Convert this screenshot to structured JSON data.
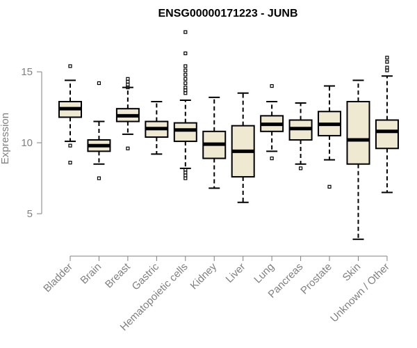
{
  "chart_data": {
    "type": "box",
    "title": "ENSG00000171223 - JUNB",
    "xlabel": "",
    "ylabel": "Expression",
    "ylim": [
      2.6,
      18.0
    ],
    "yticks": [
      5,
      10,
      15
    ],
    "box_fill": "#efe9d2",
    "line_color": "#000000",
    "axis_color": "#808080",
    "categories": [
      "Bladder",
      "Brain",
      "Breast",
      "Gastric",
      "Hematopoietic cells",
      "Kidney",
      "Liver",
      "Lung",
      "Pancreas",
      "Prostate",
      "Skin",
      "Unknown / Other"
    ],
    "boxes": [
      {
        "whisker_low": 10.1,
        "q1": 11.8,
        "median": 12.4,
        "q3": 12.9,
        "whisker_high": 14.4,
        "outliers": [
          15.4,
          9.8,
          8.6
        ]
      },
      {
        "whisker_low": 8.5,
        "q1": 9.4,
        "median": 9.8,
        "q3": 10.2,
        "whisker_high": 11.5,
        "outliers": [
          14.2,
          7.5
        ]
      },
      {
        "whisker_low": 10.6,
        "q1": 11.5,
        "median": 11.9,
        "q3": 12.4,
        "whisker_high": 13.9,
        "outliers": [
          14.5,
          14.3,
          14.1,
          13.9,
          9.6
        ]
      },
      {
        "whisker_low": 9.2,
        "q1": 10.4,
        "median": 11.0,
        "q3": 11.5,
        "whisker_high": 12.9,
        "outliers": []
      },
      {
        "whisker_low": 8.2,
        "q1": 10.1,
        "median": 10.9,
        "q3": 11.4,
        "whisker_high": 13.0,
        "outliers": [
          17.8,
          16.3,
          15.4,
          15.1,
          14.8,
          14.5,
          14.2,
          13.9,
          13.7,
          13.5,
          8.1,
          7.9,
          7.7,
          7.5
        ]
      },
      {
        "whisker_low": 6.8,
        "q1": 8.9,
        "median": 9.9,
        "q3": 10.8,
        "whisker_high": 13.2,
        "outliers": []
      },
      {
        "whisker_low": 5.8,
        "q1": 7.6,
        "median": 9.4,
        "q3": 11.2,
        "whisker_high": 13.5,
        "outliers": []
      },
      {
        "whisker_low": 9.4,
        "q1": 10.8,
        "median": 11.3,
        "q3": 11.9,
        "whisker_high": 12.9,
        "outliers": [
          14.0,
          8.9
        ]
      },
      {
        "whisker_low": 8.5,
        "q1": 10.2,
        "median": 11.0,
        "q3": 11.6,
        "whisker_high": 12.8,
        "outliers": [
          8.2
        ]
      },
      {
        "whisker_low": 8.8,
        "q1": 10.5,
        "median": 11.3,
        "q3": 12.2,
        "whisker_high": 14.0,
        "outliers": [
          6.9
        ]
      },
      {
        "whisker_low": 3.2,
        "q1": 8.5,
        "median": 10.2,
        "q3": 12.9,
        "whisker_high": 14.4,
        "outliers": []
      },
      {
        "whisker_low": 6.5,
        "q1": 9.6,
        "median": 10.8,
        "q3": 11.6,
        "whisker_high": 14.7,
        "outliers": [
          16.0,
          15.7,
          15.3,
          15.1
        ]
      }
    ]
  }
}
